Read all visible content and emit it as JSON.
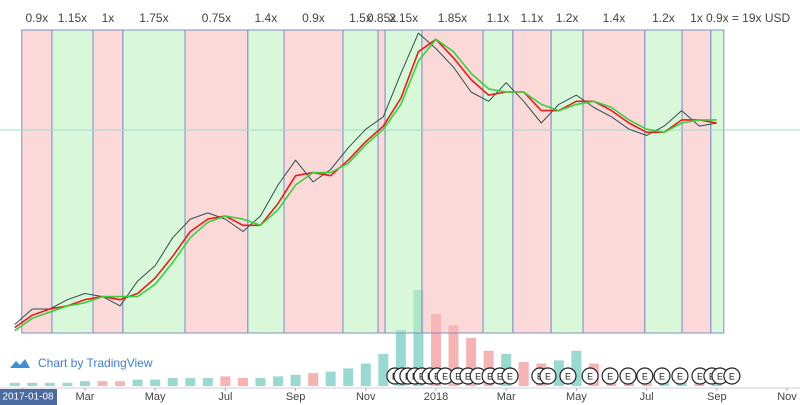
{
  "chart_data": {
    "type": "line",
    "watermark": "Chart by TradingView",
    "x": [
      0,
      0.5,
      1,
      1.5,
      2,
      2.5,
      3,
      3.5,
      4,
      4.5,
      5,
      5.5,
      6,
      6.5,
      7,
      7.5,
      8,
      8.5,
      9,
      9.5,
      10,
      10.5,
      11,
      11.5,
      12,
      12.5,
      13,
      13.5,
      14,
      14.5,
      15,
      15.5,
      16,
      16.5,
      17,
      17.5,
      18,
      18.5,
      19,
      19.5,
      20
    ],
    "xlim": [
      -0.42,
      22.37
    ],
    "xticks": [
      {
        "value": 0.23,
        "label": "2017-01-08"
      },
      {
        "value": 2,
        "label": "Mar"
      },
      {
        "value": 4,
        "label": "May"
      },
      {
        "value": 6,
        "label": "Jul"
      },
      {
        "value": 8,
        "label": "Sep"
      },
      {
        "value": 10,
        "label": "Nov"
      },
      {
        "value": 12,
        "label": "2018"
      },
      {
        "value": 14,
        "label": "Mar"
      },
      {
        "value": 16,
        "label": "May"
      },
      {
        "value": 18,
        "label": "Jul"
      },
      {
        "value": 20,
        "label": "Sep"
      },
      {
        "value": 22,
        "label": "Nov"
      }
    ],
    "ylim": [
      0,
      100
    ],
    "series": [
      {
        "color": "#2f4f4f",
        "values": [
          5,
          10,
          10,
          13,
          15,
          14,
          11,
          19,
          24,
          33,
          39,
          41,
          39,
          35,
          40,
          50,
          58,
          51,
          55,
          62,
          68,
          72,
          86,
          99,
          94,
          88,
          80,
          77,
          83,
          77,
          70,
          76,
          79,
          75,
          72,
          68,
          66,
          69,
          74,
          69,
          70
        ]
      },
      {
        "color": "#e02020",
        "values": [
          4,
          8,
          10,
          11,
          13,
          14,
          13,
          15,
          20,
          27,
          35,
          39,
          40,
          37,
          37,
          44,
          53,
          54,
          53,
          58,
          64,
          69,
          78,
          93,
          97,
          91,
          84,
          79,
          80,
          80,
          74,
          74,
          77,
          77,
          74,
          70,
          67,
          67,
          71,
          71,
          70
        ]
      },
      {
        "color": "#3ccf3c",
        "values": [
          3,
          7,
          9,
          11,
          12,
          14,
          14,
          14,
          18,
          25,
          33,
          38,
          40,
          39,
          37,
          42,
          50,
          54,
          54,
          57,
          63,
          68,
          76,
          90,
          97,
          93,
          86,
          81,
          80,
          80,
          76,
          74,
          76,
          77,
          75,
          71,
          68,
          67,
          70,
          71,
          71
        ]
      }
    ],
    "volume": {
      "ylim": [
        0,
        60
      ],
      "colors": [
        "#7fd0c4",
        "#f2a0a0"
      ],
      "values": [
        2,
        2,
        2,
        2,
        3,
        3,
        3,
        4,
        4,
        5,
        5,
        5,
        6,
        5,
        5,
        6,
        7,
        8,
        9,
        11,
        14,
        20,
        35,
        60,
        45,
        38,
        30,
        22,
        20,
        15,
        14,
        16,
        22,
        14,
        10,
        9,
        8,
        8,
        8,
        7,
        7
      ]
    },
    "zones": [
      {
        "start": 0.2,
        "end": 1.06,
        "label": "0.9x",
        "color": "#f7b9b9"
      },
      {
        "start": 1.06,
        "end": 2.23,
        "label": "1.15x",
        "color": "#b9f2b9"
      },
      {
        "start": 2.23,
        "end": 3.08,
        "label": "1x",
        "color": "#f7b9b9"
      },
      {
        "start": 3.08,
        "end": 4.85,
        "label": "1.75x",
        "color": "#b9f2b9"
      },
      {
        "start": 4.85,
        "end": 6.64,
        "label": "0.75x",
        "color": "#f7b9b9"
      },
      {
        "start": 6.64,
        "end": 7.67,
        "label": "1.4x",
        "color": "#b9f2b9"
      },
      {
        "start": 7.67,
        "end": 9.35,
        "label": "0.9x",
        "color": "#f7b9b9"
      },
      {
        "start": 9.35,
        "end": 10.35,
        "label": "1.5x",
        "color": "#b9f2b9"
      },
      {
        "start": 10.35,
        "end": 10.55,
        "label": "0.85x",
        "color": "#f7b9b9"
      },
      {
        "start": 10.55,
        "end": 11.6,
        "label": "2.15x",
        "color": "#b9f2b9"
      },
      {
        "start": 11.6,
        "end": 13.34,
        "label": "1.85x",
        "color": "#f7b9b9"
      },
      {
        "start": 13.34,
        "end": 14.19,
        "label": "1.1x",
        "color": "#b9f2b9"
      },
      {
        "start": 14.19,
        "end": 15.28,
        "label": "1.1x",
        "color": "#f7b9b9"
      },
      {
        "start": 15.28,
        "end": 16.19,
        "label": "1.2x",
        "color": "#b9f2b9"
      },
      {
        "start": 16.19,
        "end": 17.95,
        "label": "1.4x",
        "color": "#f7b9b9"
      },
      {
        "start": 17.95,
        "end": 19.01,
        "label": "1.2x",
        "color": "#b9f2b9"
      },
      {
        "start": 19.01,
        "end": 19.83,
        "label": "1x",
        "color": "#f7b9b9"
      },
      {
        "start": 19.83,
        "end": 20.2,
        "label": "0.9x",
        "color": "#b9f2b9"
      }
    ],
    "total_annotation": "= 19x USD",
    "events": {
      "label": "E",
      "x": [
        10.83,
        11.03,
        11.2,
        11.4,
        11.6,
        11.83,
        12.03,
        12.26,
        12.63,
        12.91,
        13.2,
        13.54,
        13.82,
        14.11,
        14.96,
        15.19,
        15.76,
        16.39,
        16.96,
        17.47,
        17.95,
        18.44,
        18.95,
        19.52,
        19.86,
        20.09,
        20.43
      ]
    }
  }
}
